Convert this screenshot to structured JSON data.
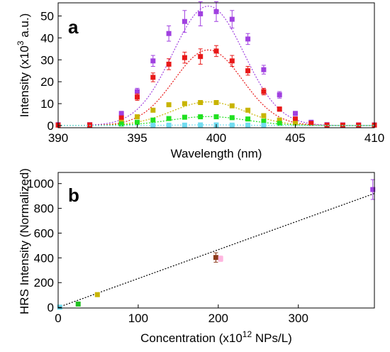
{
  "chart_data": [
    {
      "panel": "a",
      "type": "scatter",
      "xlabel": "Wavelength (nm)",
      "ylabel_main": "Intensity (x10",
      "ylabel_exp": "3",
      "ylabel_tail": " a.u.)",
      "xlim": [
        390,
        410
      ],
      "ylim": [
        -1,
        56
      ],
      "xticks": [
        390,
        395,
        400,
        405,
        410
      ],
      "yticks": [
        0,
        10,
        20,
        30,
        40,
        50
      ],
      "grid": false,
      "legend": "none",
      "series": [
        {
          "color": "#a040e0",
          "x": [
            390,
            392,
            394,
            395,
            396,
            397,
            398,
            399,
            400,
            401,
            402,
            403,
            404,
            405,
            406,
            407,
            408,
            409,
            410
          ],
          "values": [
            0.4,
            0.4,
            5.5,
            15.5,
            29.5,
            42,
            47.5,
            51,
            52,
            48.5,
            39.5,
            25.5,
            14,
            5.5,
            1.5,
            0.4,
            0.3,
            0.3,
            0.3
          ],
          "errors": [
            0.3,
            0.3,
            1,
            1.5,
            2.5,
            3.5,
            5,
            5.5,
            4.5,
            4,
            2.5,
            2,
            1.5,
            1,
            0.5,
            0.3,
            0.3,
            0.3,
            0.3
          ],
          "fit": {
            "amplitude": 54.5,
            "center": 399.5,
            "sigma": 2.25
          }
        },
        {
          "color": "#e81818",
          "x": [
            390,
            392,
            394,
            395,
            396,
            397,
            398,
            399,
            400,
            401,
            402,
            403,
            404,
            405,
            406,
            407,
            408,
            409,
            410
          ],
          "values": [
            0.2,
            0.3,
            3.5,
            13,
            22,
            28,
            31,
            31.5,
            34,
            29.5,
            25,
            15.5,
            7.5,
            3,
            1,
            0.2,
            0.2,
            0.2,
            0.2
          ],
          "errors": [
            0.2,
            0.2,
            0.5,
            1.5,
            2,
            2.5,
            2.5,
            3.5,
            2.5,
            2.5,
            2,
            1.5,
            1,
            0.5,
            0.5,
            0.2,
            0.2,
            0.2,
            0.2
          ],
          "fit": {
            "amplitude": 34.5,
            "center": 399.5,
            "sigma": 2.15
          }
        },
        {
          "color": "#c8b400",
          "x": [
            394,
            395,
            396,
            397,
            398,
            399,
            400,
            401,
            402,
            403,
            404,
            405
          ],
          "values": [
            1.5,
            4,
            7,
            9.5,
            10,
            10.5,
            10.5,
            9,
            7,
            4.5,
            2.5,
            1
          ],
          "errors": [
            0.3,
            0.5,
            0.7,
            0.8,
            0.8,
            0.8,
            0.8,
            0.7,
            0.6,
            0.5,
            0.4,
            0.3
          ],
          "fit": {
            "amplitude": 10.8,
            "center": 399.5,
            "sigma": 2.3
          }
        },
        {
          "color": "#20e020",
          "x": [
            394,
            395,
            396,
            397,
            398,
            399,
            400,
            401,
            402,
            403,
            404
          ],
          "values": [
            0.7,
            1.5,
            2.5,
            3.2,
            3.8,
            4,
            4,
            3.6,
            3,
            2,
            1
          ],
          "errors": [
            0.2,
            0.3,
            0.3,
            0.4,
            0.4,
            0.4,
            0.4,
            0.4,
            0.3,
            0.3,
            0.2
          ],
          "fit": {
            "amplitude": 4.1,
            "center": 399.5,
            "sigma": 2.4
          }
        },
        {
          "color": "#70dcf0",
          "x": [
            396,
            397,
            398,
            399,
            400,
            401,
            402,
            403
          ],
          "values": [
            0.1,
            0.2,
            0.2,
            0.3,
            0.3,
            0.2,
            0.2,
            0.1
          ],
          "errors": [
            0.1,
            0.1,
            0.1,
            0.1,
            0.1,
            0.1,
            0.1,
            0.1
          ],
          "fit": {
            "amplitude": 0.3,
            "center": 399.5,
            "sigma": 2.3
          }
        }
      ]
    },
    {
      "panel": "b",
      "type": "scatter",
      "xlabel_main": "Concentration (x10",
      "xlabel_exp": "12",
      "xlabel_tail": " NPs/L)",
      "ylabel": "HRS Intensity (Normalized)",
      "xlim": [
        0,
        395
      ],
      "ylim": [
        -5,
        1090
      ],
      "xticks": [
        0,
        100,
        200,
        300
      ],
      "yticks": [
        0,
        200,
        400,
        600,
        800,
        1000
      ],
      "grid": false,
      "legend": "none",
      "points": [
        {
          "x": 2,
          "y": 2,
          "err": 5,
          "color": "#70dcf0"
        },
        {
          "x": 25,
          "y": 27,
          "err": 8,
          "color": "#20c020"
        },
        {
          "x": 49,
          "y": 103,
          "err": 8,
          "color": "#c8b400"
        },
        {
          "x": 197,
          "y": 403,
          "err": 38,
          "color": "#8b3a1a"
        },
        {
          "x": 203,
          "y": 393,
          "err": 22,
          "color": "#ffb6e0"
        },
        {
          "x": 393,
          "y": 952,
          "err": 80,
          "color": "#a040e0"
        }
      ],
      "fit_line": {
        "slope": 2.33,
        "intercept": 0,
        "color": "#000000"
      }
    }
  ],
  "panels": {
    "a": {
      "label": "a"
    },
    "b": {
      "label": "b"
    }
  }
}
